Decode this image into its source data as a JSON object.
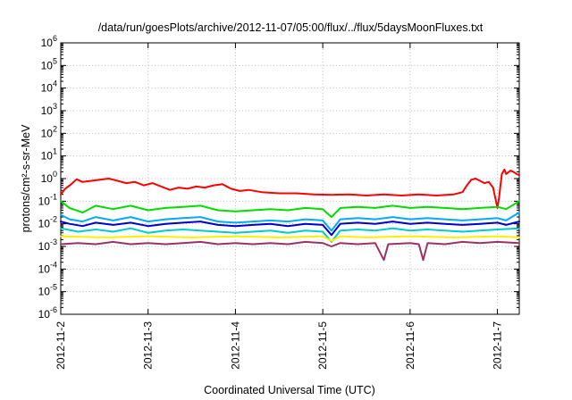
{
  "chart_data": {
    "type": "line",
    "title": "/data/run/goesPlots/archive/2012-11-07/05:00/flux/../flux/5daysMoonFluxes.txt",
    "xlabel": "Coordinated Universal Time (UTC)",
    "ylabel": "protons/cm²-s-sr-MeV",
    "y_scale": "log",
    "ylim_exponent": [
      -6,
      6
    ],
    "y_tick_exponents": [
      -6,
      -5,
      -4,
      -3,
      -2,
      -1,
      0,
      1,
      2,
      3,
      4,
      5,
      6
    ],
    "x_range_days": [
      "2012-11-2",
      "2012-11-7 ~07:00"
    ],
    "x_ticks": [
      "2012-11-2",
      "2012-11-3",
      "2012-11-4",
      "2012-11-5",
      "2012-11-6",
      "2012-11-7"
    ],
    "grid": true,
    "legend": "none",
    "series": [
      {
        "color": "#ff0000",
        "points": [
          [
            0,
            -0.7
          ],
          [
            0.05,
            -0.45
          ],
          [
            0.12,
            -0.25
          ],
          [
            0.18,
            -0.03
          ],
          [
            0.25,
            -0.15
          ],
          [
            0.35,
            -0.1
          ],
          [
            0.45,
            -0.05
          ],
          [
            0.55,
            0.0
          ],
          [
            0.65,
            -0.1
          ],
          [
            0.75,
            -0.2
          ],
          [
            0.85,
            -0.15
          ],
          [
            0.95,
            -0.3
          ],
          [
            1.05,
            -0.2
          ],
          [
            1.15,
            -0.35
          ],
          [
            1.25,
            -0.5
          ],
          [
            1.35,
            -0.4
          ],
          [
            1.45,
            -0.45
          ],
          [
            1.55,
            -0.35
          ],
          [
            1.65,
            -0.4
          ],
          [
            1.75,
            -0.3
          ],
          [
            1.85,
            -0.25
          ],
          [
            1.95,
            -0.45
          ],
          [
            2.05,
            -0.55
          ],
          [
            2.15,
            -0.5
          ],
          [
            2.3,
            -0.6
          ],
          [
            2.5,
            -0.65
          ],
          [
            2.7,
            -0.65
          ],
          [
            2.9,
            -0.7
          ],
          [
            3.1,
            -0.72
          ],
          [
            3.3,
            -0.7
          ],
          [
            3.5,
            -0.75
          ],
          [
            3.7,
            -0.7
          ],
          [
            3.9,
            -0.75
          ],
          [
            4.1,
            -0.7
          ],
          [
            4.3,
            -0.75
          ],
          [
            4.5,
            -0.7
          ],
          [
            4.6,
            -0.6
          ],
          [
            4.65,
            -0.3
          ],
          [
            4.7,
            -0.05
          ],
          [
            4.75,
            0.0
          ],
          [
            4.8,
            -0.1
          ],
          [
            4.85,
            -0.2
          ],
          [
            4.9,
            -0.15
          ],
          [
            4.95,
            -0.4
          ],
          [
            5.0,
            -1.3
          ],
          [
            5.02,
            -0.8
          ],
          [
            5.05,
            0.2
          ],
          [
            5.08,
            0.4
          ],
          [
            5.1,
            0.2
          ],
          [
            5.15,
            0.35
          ],
          [
            5.18,
            0.3
          ],
          [
            5.22,
            0.2
          ],
          [
            5.25,
            0.15
          ]
        ]
      },
      {
        "color": "#00dd00",
        "points": [
          [
            0,
            -1.0
          ],
          [
            0.1,
            -1.3
          ],
          [
            0.25,
            -1.5
          ],
          [
            0.4,
            -1.2
          ],
          [
            0.6,
            -1.35
          ],
          [
            0.8,
            -1.2
          ],
          [
            1.0,
            -1.4
          ],
          [
            1.2,
            -1.3
          ],
          [
            1.4,
            -1.25
          ],
          [
            1.6,
            -1.2
          ],
          [
            1.8,
            -1.4
          ],
          [
            2.0,
            -1.45
          ],
          [
            2.2,
            -1.4
          ],
          [
            2.4,
            -1.35
          ],
          [
            2.6,
            -1.4
          ],
          [
            2.8,
            -1.3
          ],
          [
            3.0,
            -1.35
          ],
          [
            3.1,
            -1.7
          ],
          [
            3.2,
            -1.3
          ],
          [
            3.4,
            -1.25
          ],
          [
            3.6,
            -1.3
          ],
          [
            3.8,
            -1.2
          ],
          [
            4.0,
            -1.3
          ],
          [
            4.2,
            -1.25
          ],
          [
            4.4,
            -1.3
          ],
          [
            4.6,
            -1.35
          ],
          [
            4.8,
            -1.3
          ],
          [
            5.0,
            -1.25
          ],
          [
            5.1,
            -1.35
          ],
          [
            5.25,
            -1.0
          ]
        ]
      },
      {
        "color": "#00aaff",
        "points": [
          [
            0,
            -1.6
          ],
          [
            0.1,
            -1.8
          ],
          [
            0.25,
            -1.9
          ],
          [
            0.4,
            -1.7
          ],
          [
            0.6,
            -1.85
          ],
          [
            0.8,
            -1.7
          ],
          [
            1.0,
            -1.9
          ],
          [
            1.2,
            -1.8
          ],
          [
            1.4,
            -1.75
          ],
          [
            1.6,
            -1.7
          ],
          [
            1.8,
            -1.9
          ],
          [
            2.0,
            -1.95
          ],
          [
            2.2,
            -1.9
          ],
          [
            2.4,
            -1.85
          ],
          [
            2.6,
            -1.9
          ],
          [
            2.8,
            -1.8
          ],
          [
            3.0,
            -1.85
          ],
          [
            3.1,
            -2.3
          ],
          [
            3.2,
            -1.8
          ],
          [
            3.4,
            -1.75
          ],
          [
            3.6,
            -1.8
          ],
          [
            3.8,
            -1.7
          ],
          [
            4.0,
            -1.8
          ],
          [
            4.2,
            -1.75
          ],
          [
            4.4,
            -1.8
          ],
          [
            4.6,
            -1.85
          ],
          [
            4.8,
            -1.8
          ],
          [
            5.0,
            -1.75
          ],
          [
            5.1,
            -1.85
          ],
          [
            5.25,
            -1.5
          ]
        ]
      },
      {
        "color": "#0000cc",
        "points": [
          [
            0,
            -1.9
          ],
          [
            0.1,
            -2.0
          ],
          [
            0.25,
            -2.1
          ],
          [
            0.4,
            -1.95
          ],
          [
            0.6,
            -2.05
          ],
          [
            0.8,
            -1.95
          ],
          [
            1.0,
            -2.1
          ],
          [
            1.2,
            -2.0
          ],
          [
            1.4,
            -1.95
          ],
          [
            1.6,
            -1.9
          ],
          [
            1.8,
            -2.05
          ],
          [
            2.0,
            -2.1
          ],
          [
            2.2,
            -2.05
          ],
          [
            2.4,
            -2.0
          ],
          [
            2.6,
            -2.1
          ],
          [
            2.8,
            -2.0
          ],
          [
            3.0,
            -2.05
          ],
          [
            3.1,
            -2.5
          ],
          [
            3.2,
            -2.0
          ],
          [
            3.4,
            -1.95
          ],
          [
            3.6,
            -2.0
          ],
          [
            3.8,
            -1.9
          ],
          [
            4.0,
            -2.0
          ],
          [
            4.2,
            -1.95
          ],
          [
            4.4,
            -2.0
          ],
          [
            4.6,
            -2.05
          ],
          [
            4.8,
            -2.0
          ],
          [
            5.0,
            -1.95
          ],
          [
            5.1,
            -2.05
          ],
          [
            5.25,
            -1.9
          ]
        ]
      },
      {
        "color": "#00cccc",
        "points": [
          [
            0,
            -2.2
          ],
          [
            0.2,
            -2.35
          ],
          [
            0.4,
            -2.25
          ],
          [
            0.6,
            -2.35
          ],
          [
            0.8,
            -2.2
          ],
          [
            1.0,
            -2.4
          ],
          [
            1.2,
            -2.3
          ],
          [
            1.4,
            -2.25
          ],
          [
            1.6,
            -2.3
          ],
          [
            1.8,
            -2.35
          ],
          [
            2.0,
            -2.4
          ],
          [
            2.2,
            -2.35
          ],
          [
            2.4,
            -2.3
          ],
          [
            2.6,
            -2.4
          ],
          [
            2.8,
            -2.3
          ],
          [
            3.0,
            -2.35
          ],
          [
            3.1,
            -2.8
          ],
          [
            3.2,
            -2.3
          ],
          [
            3.4,
            -2.25
          ],
          [
            3.6,
            -2.3
          ],
          [
            3.8,
            -2.2
          ],
          [
            4.0,
            -2.3
          ],
          [
            4.2,
            -2.25
          ],
          [
            4.4,
            -2.3
          ],
          [
            4.6,
            -2.35
          ],
          [
            4.8,
            -2.3
          ],
          [
            5.0,
            -2.25
          ],
          [
            5.25,
            -2.2
          ]
        ]
      },
      {
        "color": "#ffee00",
        "points": [
          [
            0,
            -2.55
          ],
          [
            0.5,
            -2.6
          ],
          [
            1.0,
            -2.55
          ],
          [
            1.5,
            -2.6
          ],
          [
            2.0,
            -2.55
          ],
          [
            2.5,
            -2.6
          ],
          [
            3.0,
            -2.55
          ],
          [
            3.1,
            -2.75
          ],
          [
            3.2,
            -2.55
          ],
          [
            3.5,
            -2.6
          ],
          [
            4.0,
            -2.55
          ],
          [
            4.5,
            -2.6
          ],
          [
            5.0,
            -2.55
          ],
          [
            5.25,
            -2.6
          ]
        ]
      },
      {
        "color": "#993366",
        "points": [
          [
            0,
            -2.9
          ],
          [
            0.2,
            -2.85
          ],
          [
            0.4,
            -2.9
          ],
          [
            0.6,
            -2.8
          ],
          [
            0.8,
            -2.9
          ],
          [
            1.0,
            -2.85
          ],
          [
            1.2,
            -2.9
          ],
          [
            1.4,
            -2.85
          ],
          [
            1.6,
            -2.8
          ],
          [
            1.8,
            -2.9
          ],
          [
            2.0,
            -2.85
          ],
          [
            2.2,
            -2.9
          ],
          [
            2.4,
            -2.85
          ],
          [
            2.6,
            -2.9
          ],
          [
            2.8,
            -2.8
          ],
          [
            3.0,
            -2.85
          ],
          [
            3.1,
            -3.0
          ],
          [
            3.2,
            -2.85
          ],
          [
            3.4,
            -2.9
          ],
          [
            3.6,
            -2.85
          ],
          [
            3.7,
            -3.6
          ],
          [
            3.75,
            -2.9
          ],
          [
            4.0,
            -2.85
          ],
          [
            4.1,
            -2.9
          ],
          [
            4.15,
            -3.6
          ],
          [
            4.2,
            -2.85
          ],
          [
            4.4,
            -2.9
          ],
          [
            4.6,
            -2.8
          ],
          [
            4.8,
            -2.85
          ],
          [
            5.0,
            -2.8
          ],
          [
            5.25,
            -2.85
          ]
        ]
      }
    ]
  }
}
